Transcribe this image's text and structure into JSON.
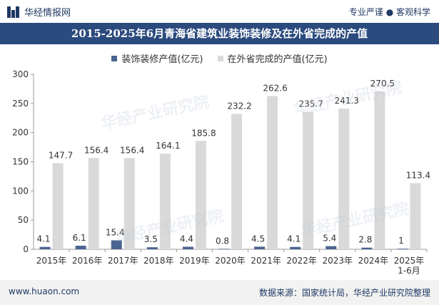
{
  "header": {
    "brand": "华经情报网",
    "tagline": "专业严谨 ● 客观科学"
  },
  "watermark": "华经产业研究院",
  "footer": {
    "website": "www.huaon.com",
    "source": "数据来源：国家统计局，华经产业研究院整理"
  },
  "colors": {
    "title_bg": "#2b4a7d",
    "series_deco": "#4a6492",
    "series_other": "#d9d9d9"
  },
  "chart_data": {
    "type": "bar",
    "title": "2015-2025年6月青海省建筑业装饰装修及在外省完成的产值",
    "categories": [
      "2015年",
      "2016年",
      "2017年",
      "2018年",
      "2019年",
      "2020年",
      "2021年",
      "2022年",
      "2023年",
      "2024年",
      "2025年1-6月"
    ],
    "series": [
      {
        "name": "装饰装修产值(亿元)",
        "values": [
          4.1,
          6.1,
          15.4,
          3.5,
          4.4,
          0.8,
          4.5,
          4.1,
          5.4,
          2.8,
          1
        ]
      },
      {
        "name": "在外省完成的产值(亿元)",
        "values": [
          147.7,
          156.4,
          156.4,
          164.1,
          185.8,
          232.2,
          262.6,
          235.7,
          241.3,
          270.5,
          113.4
        ]
      }
    ],
    "y_ticks": [
      0,
      50,
      100,
      150,
      200,
      250,
      300
    ],
    "ylim": [
      0,
      300
    ],
    "legend_position": "top-center",
    "grid": false
  }
}
